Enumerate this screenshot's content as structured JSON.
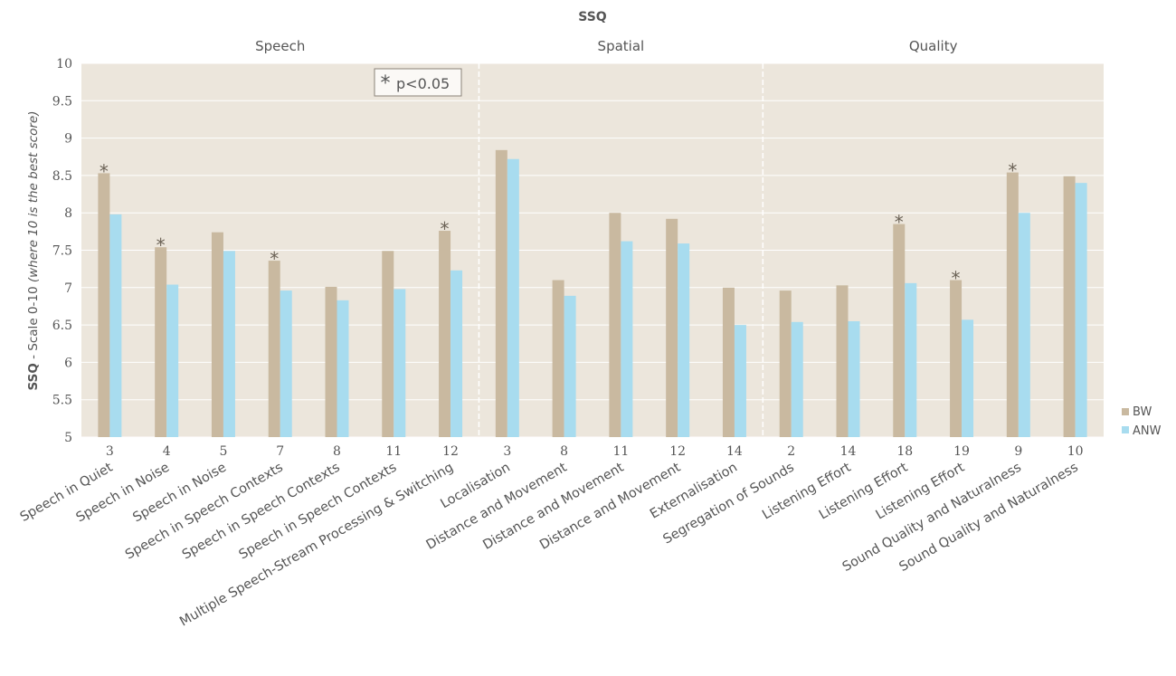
{
  "chart_data": {
    "type": "bar",
    "title": "SSQ",
    "ylabel_bold": "SSQ",
    "ylabel_rest": " - Scale 0-10 ",
    "ylabel_italic": "(where 10 is the best score)",
    "ylim": [
      5,
      10
    ],
    "yticks": [
      "5",
      "5.5",
      "6",
      "6.5",
      "7",
      "7.5",
      "8",
      "8.5",
      "9",
      "9.5",
      "10"
    ],
    "grid": true,
    "legend_position": "right",
    "annotation": "p<0.05",
    "annotation_star": "*",
    "groups": [
      {
        "label": "Speech",
        "start": 0,
        "end": 6
      },
      {
        "label": "Spatial",
        "start": 7,
        "end": 11
      },
      {
        "label": "Quality",
        "start": 12,
        "end": 17
      }
    ],
    "categories": [
      {
        "number": "3",
        "label": "Speech in Quiet",
        "star": true
      },
      {
        "number": "4",
        "label": "Speech in Noise",
        "star": true
      },
      {
        "number": "5",
        "label": "Speech in Noise",
        "star": false
      },
      {
        "number": "7",
        "label": "Speech in Speech Contexts",
        "star": true
      },
      {
        "number": "8",
        "label": "Speech in Speech Contexts",
        "star": false
      },
      {
        "number": "11",
        "label": "Speech in Speech Contexts",
        "star": false
      },
      {
        "number": "12",
        "label": "Multiple Speech-Stream Processing & Switching",
        "star": true
      },
      {
        "number": "3",
        "label": "Localisation",
        "star": false
      },
      {
        "number": "8",
        "label": "Distance and Movement",
        "star": false
      },
      {
        "number": "11",
        "label": "Distance and Movement",
        "star": false
      },
      {
        "number": "12",
        "label": "Distance and Movement",
        "star": false
      },
      {
        "number": "14",
        "label": "Externalisation",
        "star": false
      },
      {
        "number": "2",
        "label": "Segregation of Sounds",
        "star": false
      },
      {
        "number": "14",
        "label": "Listening Effort",
        "star": false
      },
      {
        "number": "18",
        "label": "Listening Effort",
        "star": true
      },
      {
        "number": "19",
        "label": "Listening Effort",
        "star": true
      },
      {
        "number": "9",
        "label": "Sound Quality and Naturalness",
        "star": true
      },
      {
        "number": "10",
        "label": "Sound Quality and Naturalness",
        "star": false
      }
    ],
    "series": [
      {
        "name": "BW",
        "color": "#c9b9a0",
        "values": [
          8.53,
          7.54,
          7.74,
          7.36,
          7.01,
          7.49,
          7.76,
          8.84,
          7.1,
          8.0,
          7.92,
          7.0,
          6.96,
          7.03,
          7.85,
          7.1,
          8.54,
          8.49
        ]
      },
      {
        "name": "ANW",
        "color": "#a8dcef",
        "values": [
          7.98,
          7.04,
          7.49,
          6.96,
          6.83,
          6.98,
          7.23,
          8.72,
          6.89,
          7.62,
          7.59,
          6.5,
          6.54,
          6.55,
          7.06,
          6.57,
          8.0,
          8.4
        ]
      }
    ],
    "colors": {
      "plot_background": "#ece6dc",
      "gridline": "#ffffff",
      "text": "#555555",
      "star": "#6b6256"
    }
  }
}
